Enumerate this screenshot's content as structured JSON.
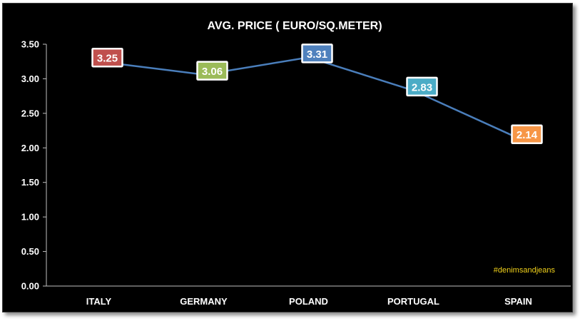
{
  "chart_data": {
    "type": "line",
    "title": "AVG. PRICE ( EURO/SQ.METER)",
    "categories": [
      "ITALY",
      "GERMANY",
      "POLAND",
      "PORTUGAL",
      "SPAIN"
    ],
    "values": [
      3.25,
      3.06,
      3.31,
      2.83,
      2.14
    ],
    "data_labels": [
      "3.25",
      "3.06",
      "3.31",
      "2.83",
      "2.14"
    ],
    "label_colors": [
      "#c0504d",
      "#9bbb59",
      "#4f81bd",
      "#4bacc6",
      "#f79646"
    ],
    "line_color": "#4a7ebb",
    "ylim": [
      0,
      3.5
    ],
    "yticks": [
      "0.00",
      "0.50",
      "1.00",
      "1.50",
      "2.00",
      "2.50",
      "3.00",
      "3.50"
    ],
    "grid": false,
    "legend": "none",
    "annotation": "#denimsandjeans"
  }
}
